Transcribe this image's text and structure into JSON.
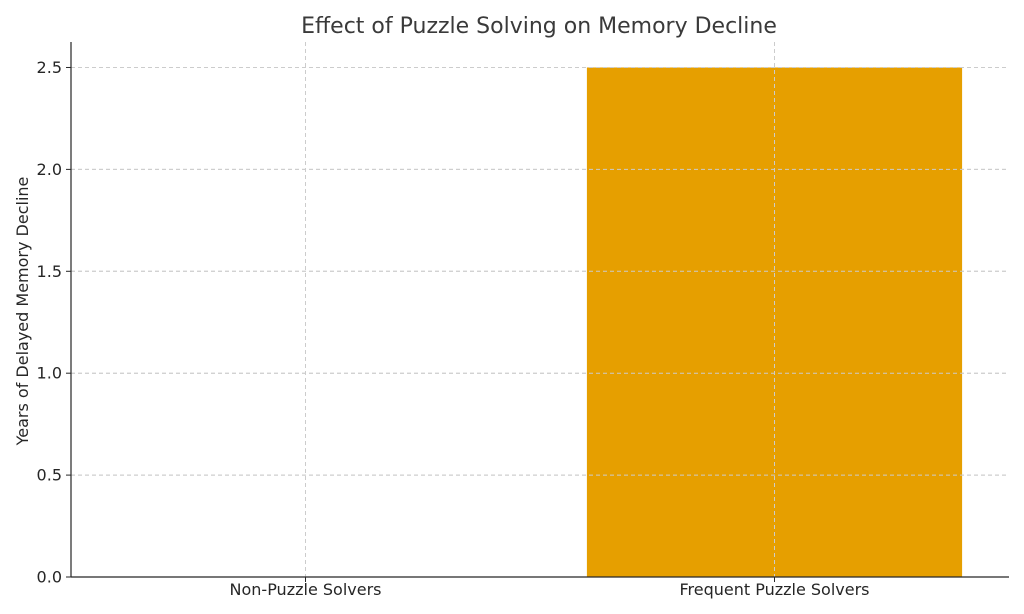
{
  "chart_data": {
    "type": "bar",
    "title": "Effect of Puzzle Solving on Memory Decline",
    "xlabel": "",
    "ylabel": "Years of Delayed Memory Decline",
    "categories": [
      "Non-Puzzle Solvers",
      "Frequent Puzzle Solvers"
    ],
    "values": [
      0,
      2.5
    ],
    "ylim": [
      0,
      2.625
    ],
    "yticks": [
      "0.0",
      "0.5",
      "1.0",
      "1.5",
      "2.0",
      "2.5"
    ],
    "ytick_values": [
      0,
      0.5,
      1.0,
      1.5,
      2.0,
      2.5
    ],
    "grid": true,
    "bar_color": "#E69F00"
  }
}
